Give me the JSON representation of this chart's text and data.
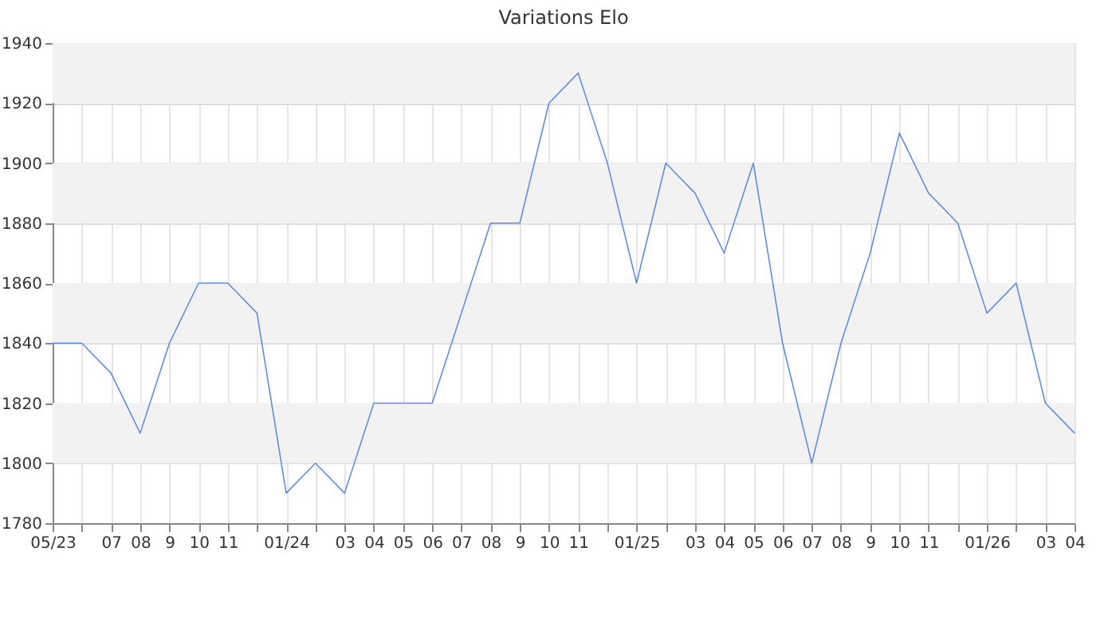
{
  "chart_data": {
    "type": "line",
    "title": "Variations Elo",
    "categories": [
      "05/23",
      null,
      "07",
      "08",
      "9",
      "10",
      "11",
      null,
      "01/24",
      null,
      "03",
      "04",
      "05",
      "06",
      "07",
      "08",
      "9",
      "10",
      "11",
      null,
      "01/25",
      null,
      "03",
      "04",
      "05",
      "06",
      "07",
      "08",
      "9",
      "10",
      "11",
      null,
      "01/26",
      null,
      "03",
      "04"
    ],
    "series": [
      {
        "color": "#5b8def",
        "values": [
          1840,
          1840,
          1830,
          1810,
          1840,
          1860,
          1860,
          1850,
          1790,
          1800,
          1790,
          1820,
          1820,
          1820,
          1850,
          1880,
          1880,
          1920,
          1930,
          1900,
          1860,
          1900,
          1890,
          1870,
          1900,
          1840,
          1800,
          1840,
          1870,
          1910,
          1890,
          1880,
          1850,
          1860,
          1820,
          1810
        ]
      }
    ],
    "ylim": [
      1780,
      1940
    ],
    "yticks": [
      1780,
      1800,
      1820,
      1840,
      1860,
      1880,
      1900,
      1920,
      1940
    ],
    "bands": [
      {
        "axis": "y",
        "from": 1800,
        "to": 1820,
        "color": "#f2f2f2"
      },
      {
        "axis": "y",
        "from": 1840,
        "to": 1860,
        "color": "#f2f2f2"
      },
      {
        "axis": "y",
        "from": 1880,
        "to": 1900,
        "color": "#f2f2f2"
      },
      {
        "axis": "y",
        "from": 1920,
        "to": 1940,
        "color": "#f2f2f2"
      }
    ],
    "grid": true,
    "marker": "none",
    "line_style": "solid"
  }
}
